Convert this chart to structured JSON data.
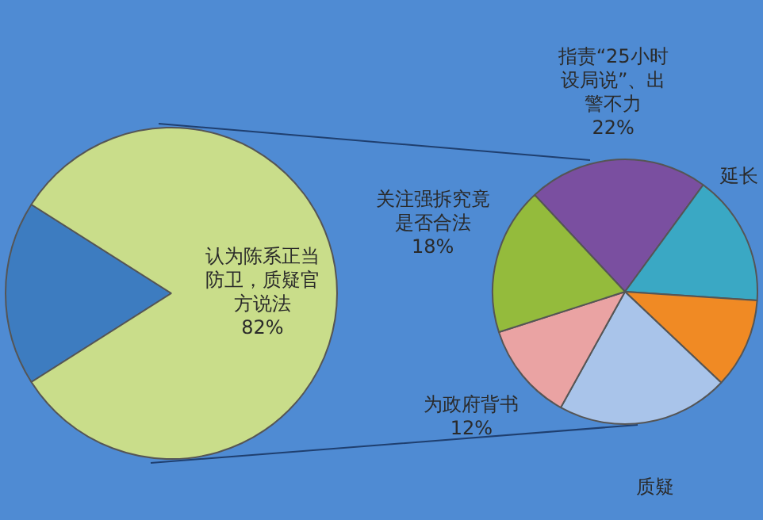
{
  "chart_data": [
    {
      "type": "pie",
      "categories": [
        null,
        "认为陈系正当防卫，质疑官方说法"
      ],
      "values": [
        18,
        82
      ],
      "colors": [
        "#3d7cc0",
        "#c9dd8a"
      ],
      "value_labels": [
        null,
        "82%"
      ],
      "legend": false
    },
    {
      "type": "pie",
      "categories": [
        "指责“25小时设局说”、出警不力",
        "延长",
        null,
        "质疑",
        "为政府背书",
        "关注强拆究竟是否合法"
      ],
      "values": [
        22,
        16,
        11,
        21,
        12,
        18
      ],
      "colors": [
        "#7a4fa0",
        "#3aa8c4",
        "#f08a24",
        "#a9c4ea",
        "#eaa3a3",
        "#94bb3c"
      ],
      "value_labels": [
        "22%",
        null,
        null,
        null,
        "12%",
        "18%"
      ],
      "legend": false
    }
  ]
}
